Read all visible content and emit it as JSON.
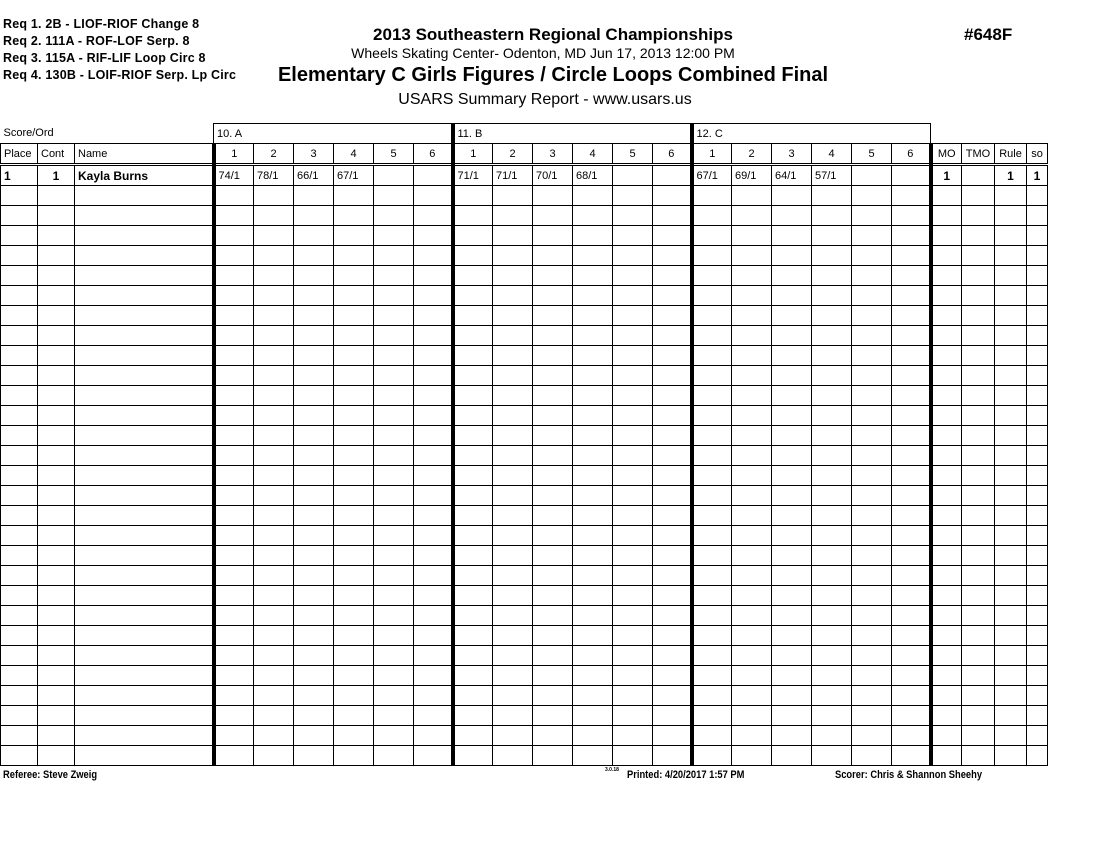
{
  "requirements": [
    "Req  1.  2B - LIOF-RIOF Change 8",
    "Req  2.  111A - ROF-LOF Serp. 8",
    "Req  3.  115A - RIF-LIF Loop Circ 8",
    "Req  4.  130B - LOIF-RIOF Serp. Lp Circ"
  ],
  "header": {
    "title": "2013 Southeastern Regional Championships",
    "venue": "Wheels Skating Center- Odenton, MD  Jun 17, 2013  12:00 PM",
    "event": "Elementary C Girls Figures / Circle Loops Combined Final",
    "report": "USARS Summary Report - www.usars.us",
    "event_number": "#648F"
  },
  "table": {
    "score_label": "Score/Ord",
    "groups": [
      "10.  A",
      "11.  B",
      "12.  C"
    ],
    "columns": {
      "place": "Place",
      "cont": "Cont",
      "name": "Name",
      "judges": [
        "1",
        "2",
        "3",
        "4",
        "5",
        "6"
      ],
      "mo": "MO",
      "tmo": "TMO",
      "rule": "Rule",
      "so": "so"
    },
    "rows": [
      {
        "place": "1",
        "cont": "1",
        "name": "Kayla Burns",
        "scores": [
          [
            "74/1",
            "78/1",
            "66/1",
            "67/1",
            "",
            ""
          ],
          [
            "71/1",
            "71/1",
            "70/1",
            "68/1",
            "",
            ""
          ],
          [
            "67/1",
            "69/1",
            "64/1",
            "57/1",
            "",
            ""
          ]
        ],
        "mo": "1",
        "tmo": "",
        "rule": "1",
        "so": "1"
      }
    ],
    "empty_rows": 29
  },
  "footer": {
    "referee": "Referee:  Steve Zweig",
    "version": "3.0.18",
    "printed": "Printed:  4/20/2017  1:57 PM",
    "scorer": "Scorer:  Chris & Shannon Sheehy"
  }
}
